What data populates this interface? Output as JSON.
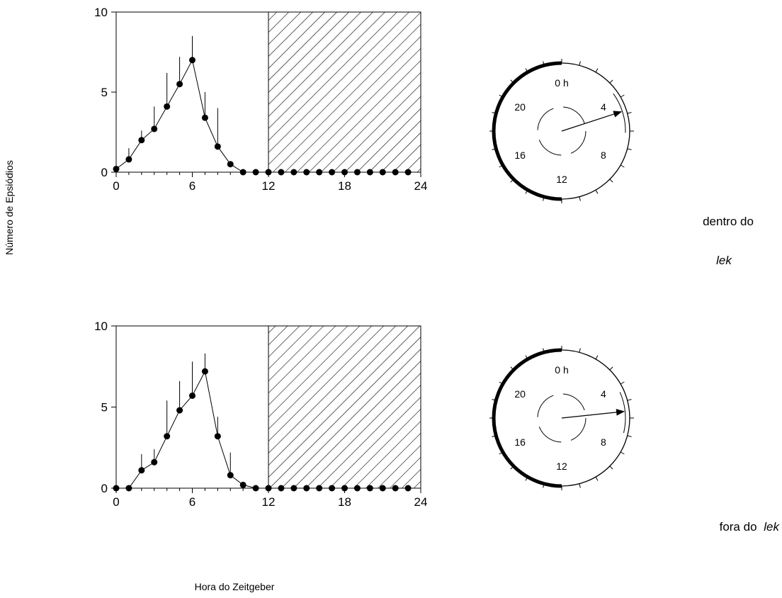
{
  "chart_data": [
    {
      "type": "scatter",
      "title": "",
      "xlabel": "Hora do Zeitgeber",
      "ylabel": "Número de Epsiódios",
      "xlim": [
        0,
        24
      ],
      "ylim": [
        0,
        10
      ],
      "xticks": [
        0,
        6,
        12,
        18,
        24
      ],
      "yticks": [
        0,
        5,
        10
      ],
      "dark_phase": [
        12,
        24
      ],
      "condition_label": [
        "dentro do",
        "lek"
      ],
      "series": [
        {
          "x": [
            0,
            1,
            2,
            3,
            4,
            5,
            6,
            7,
            8,
            9,
            10,
            11,
            12,
            13,
            14,
            15,
            16,
            17,
            18,
            19,
            20,
            21,
            22,
            23
          ],
          "y": [
            0.2,
            0.8,
            2.0,
            2.7,
            4.1,
            5.5,
            7.0,
            3.4,
            1.6,
            0.5,
            0,
            0,
            0,
            0,
            0,
            0,
            0,
            0,
            0,
            0,
            0,
            0,
            0,
            0
          ],
          "error_upper": [
            0.2,
            1.5,
            2.6,
            4.1,
            6.2,
            7.2,
            8.5,
            5.0,
            4.0,
            0.6,
            0,
            0,
            0,
            0,
            0,
            0,
            0,
            0,
            0,
            0,
            0,
            0,
            0,
            0
          ]
        }
      ],
      "clock": {
        "labels": [
          "0 h",
          "4",
          "8",
          "12",
          "16",
          "20"
        ],
        "active_arc_hours": [
          12,
          24
        ],
        "mean_vector_hour": 4.8,
        "mean_vector_length": 0.8
      }
    },
    {
      "type": "scatter",
      "title": "",
      "xlabel": "Hora do Zeitgeber",
      "ylabel": "Número de Epsiódios",
      "xlim": [
        0,
        24
      ],
      "ylim": [
        0,
        10
      ],
      "xticks": [
        0,
        6,
        12,
        18,
        24
      ],
      "yticks": [
        0,
        5,
        10
      ],
      "dark_phase": [
        12,
        24
      ],
      "condition_label": [
        "fora do",
        "lek"
      ],
      "series": [
        {
          "x": [
            0,
            1,
            2,
            3,
            4,
            5,
            6,
            7,
            8,
            9,
            10,
            11,
            12,
            13,
            14,
            15,
            16,
            17,
            18,
            19,
            20,
            21,
            22,
            23
          ],
          "y": [
            0,
            0,
            1.1,
            1.6,
            3.2,
            4.8,
            5.7,
            7.2,
            3.2,
            0.8,
            0.2,
            0,
            0,
            0,
            0,
            0,
            0,
            0,
            0,
            0,
            0,
            0,
            0,
            0
          ],
          "error_upper": [
            0,
            0,
            2.1,
            2.4,
            5.4,
            6.6,
            7.8,
            8.3,
            4.4,
            2.2,
            0.2,
            0,
            0,
            0,
            0,
            0,
            0,
            0,
            0,
            0,
            0,
            0,
            0,
            0
          ]
        }
      ],
      "clock": {
        "labels": [
          "0 h",
          "4",
          "8",
          "12",
          "16",
          "20"
        ],
        "active_arc_hours": [
          12,
          24
        ],
        "mean_vector_hour": 5.6,
        "mean_vector_length": 0.8
      }
    }
  ]
}
